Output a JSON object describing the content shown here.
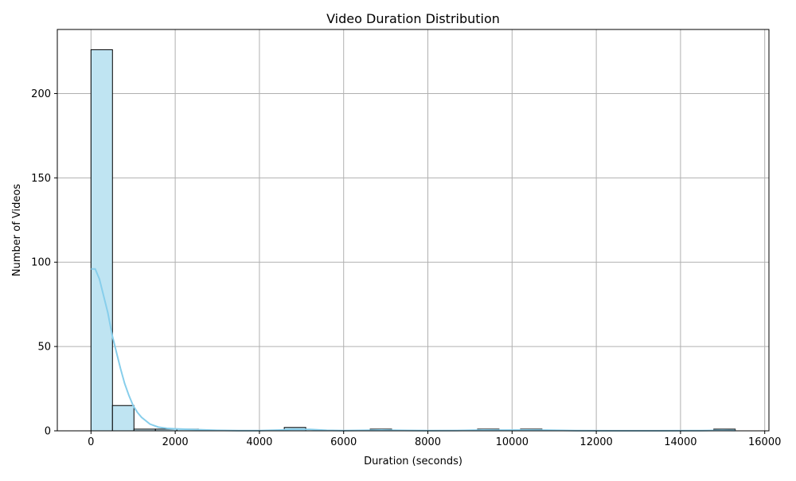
{
  "chart_data": {
    "type": "bar",
    "title": "Video Duration Distribution",
    "xlabel": "Duration (seconds)",
    "ylabel": "Number of Videos",
    "xlim": [
      -800,
      16100
    ],
    "ylim": [
      0,
      238
    ],
    "x_ticks": [
      0,
      2000,
      4000,
      6000,
      8000,
      10000,
      12000,
      14000,
      16000
    ],
    "x_tick_labels": [
      "0",
      "2000",
      "4000",
      "6000",
      "8000",
      "10000",
      "12000",
      "14000",
      "16000"
    ],
    "y_ticks": [
      0,
      50,
      100,
      150,
      200
    ],
    "y_tick_labels": [
      "0",
      "50",
      "100",
      "150",
      "200"
    ],
    "grid": true,
    "bin_width": 510,
    "bins": [
      {
        "start": 0,
        "count": 226
      },
      {
        "start": 510,
        "count": 15
      },
      {
        "start": 1020,
        "count": 1
      },
      {
        "start": 1530,
        "count": 1
      },
      {
        "start": 2040,
        "count": 1
      },
      {
        "start": 4590,
        "count": 2
      },
      {
        "start": 6630,
        "count": 1
      },
      {
        "start": 9180,
        "count": 1
      },
      {
        "start": 10200,
        "count": 1
      },
      {
        "start": 14790,
        "count": 1
      }
    ],
    "kde": {
      "color": "#87ceeb",
      "x": [
        0,
        100,
        200,
        300,
        400,
        500,
        600,
        700,
        800,
        900,
        1000,
        1100,
        1200,
        1400,
        1600,
        1800,
        2000,
        2500,
        3000,
        3500,
        4000,
        4500,
        4800,
        5200,
        5600,
        6000,
        6500,
        6900,
        7300,
        8000,
        8700,
        9300,
        9700,
        10300,
        10800,
        11500,
        12500,
        13500,
        14500,
        15000,
        15300
      ],
      "y": [
        96,
        96,
        90,
        80,
        70,
        57,
        47,
        37,
        28,
        21,
        15,
        11,
        8,
        4,
        2.2,
        1.5,
        1.2,
        0.7,
        0.3,
        0.1,
        0.1,
        0.5,
        0.9,
        0.8,
        0.3,
        0.1,
        0.3,
        0.5,
        0.3,
        0.1,
        0.2,
        0.5,
        0.4,
        0.5,
        0.4,
        0.1,
        0.05,
        0.05,
        0.1,
        0.3,
        0.2
      ]
    },
    "bar_fill": "#bfe4f2",
    "bar_edge": "#000000"
  }
}
